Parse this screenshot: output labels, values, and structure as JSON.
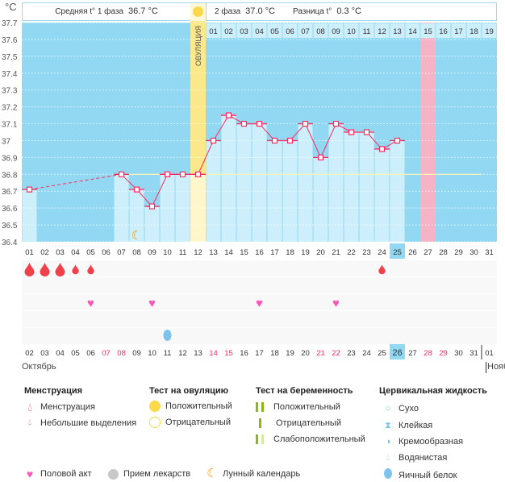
{
  "header": {
    "unit": "°C",
    "phase1_label": "Средняя t° 1 фаза",
    "phase1_value": "36.7 °C",
    "phase2_label": "2 фаза",
    "phase2_value": "37.0 °C",
    "diff_label": "Разница t°",
    "diff_value": "0.3 °C",
    "ovulation_label": "ОВУЛЯЦИЯ"
  },
  "colors": {
    "background": "#93d8f2",
    "filled": "#cdeefb",
    "line": "#ff2a5f",
    "ovulation": "#fbe88a",
    "highlight": "#f7b3c6",
    "today": "#93d8f2",
    "weekend": "#ff2a5f"
  },
  "chart_data": {
    "type": "line",
    "ylabel": "°C",
    "ylim": [
      36.4,
      37.7
    ],
    "yticks": [
      "37.7",
      "37.6",
      "37.5",
      "37.4",
      "37.3",
      "37.2",
      "37.1",
      "37",
      "36.9",
      "36.8",
      "36.7",
      "36.6",
      "36.5",
      "36.4"
    ],
    "cycle_days": [
      "01",
      "02",
      "03",
      "04",
      "05",
      "06",
      "07",
      "08",
      "09",
      "10",
      "11",
      "12",
      "13",
      "14",
      "15",
      "16",
      "17",
      "18",
      "19",
      "20",
      "21",
      "22",
      "23",
      "24",
      "25",
      "26",
      "27",
      "28",
      "29",
      "30",
      "31"
    ],
    "values": [
      36.71,
      null,
      null,
      null,
      null,
      null,
      36.8,
      36.71,
      36.61,
      36.8,
      36.8,
      36.8,
      37.0,
      37.15,
      37.1,
      37.1,
      37.0,
      37.0,
      37.1,
      36.9,
      37.1,
      37.05,
      37.05,
      36.95,
      37.0,
      null,
      null,
      null,
      null,
      null,
      null
    ],
    "coverline": 36.8,
    "ovulation_day": "12",
    "highlighted_day": "27",
    "current_day": "25",
    "phase2_days": [
      "01",
      "02",
      "03",
      "04",
      "05",
      "06",
      "07",
      "08",
      "09",
      "10",
      "11",
      "12",
      "13",
      "14",
      "15",
      "16",
      "17",
      "18",
      "19"
    ],
    "moon_day": "08"
  },
  "calendar": {
    "dates": [
      "02",
      "03",
      "04",
      "05",
      "06",
      "07",
      "08",
      "09",
      "10",
      "11",
      "12",
      "13",
      "14",
      "15",
      "16",
      "17",
      "18",
      "19",
      "20",
      "21",
      "22",
      "23",
      "24",
      "25",
      "26",
      "27",
      "28",
      "29",
      "30",
      "31",
      "01"
    ],
    "weekends": [
      "07",
      "08",
      "14",
      "15",
      "21",
      "22",
      "28",
      "29"
    ],
    "today": "26",
    "month": "Октябрь",
    "next_month": "Нояб",
    "menstruation": {
      "01": "heavy",
      "02": "heavy",
      "03": "heavy",
      "04": "light",
      "05": "light",
      "24": "light"
    },
    "intercourse": [
      "05",
      "09",
      "16",
      "21"
    ],
    "egg_white": [
      "11"
    ]
  },
  "legend": {
    "menstruation": {
      "title": "Менструация",
      "items": [
        "Менструация",
        "Небольшие выделения"
      ]
    },
    "ovulation_test": {
      "title": "Тест на овуляцию",
      "items": [
        "Положительный",
        "Отрицательный"
      ]
    },
    "pregnancy_test": {
      "title": "Тест на беременность",
      "items": [
        "Положительный",
        "Отрицательный",
        "Слабоположительный"
      ]
    },
    "cervical": {
      "title": "Цервикальная жидкость",
      "items": [
        "Сухо",
        "Клейкая",
        "Кремообразная",
        "Водянистая",
        "Яичный белок"
      ]
    },
    "other": [
      "Половой акт",
      "Прием лекарств",
      "Лунный календарь"
    ]
  }
}
